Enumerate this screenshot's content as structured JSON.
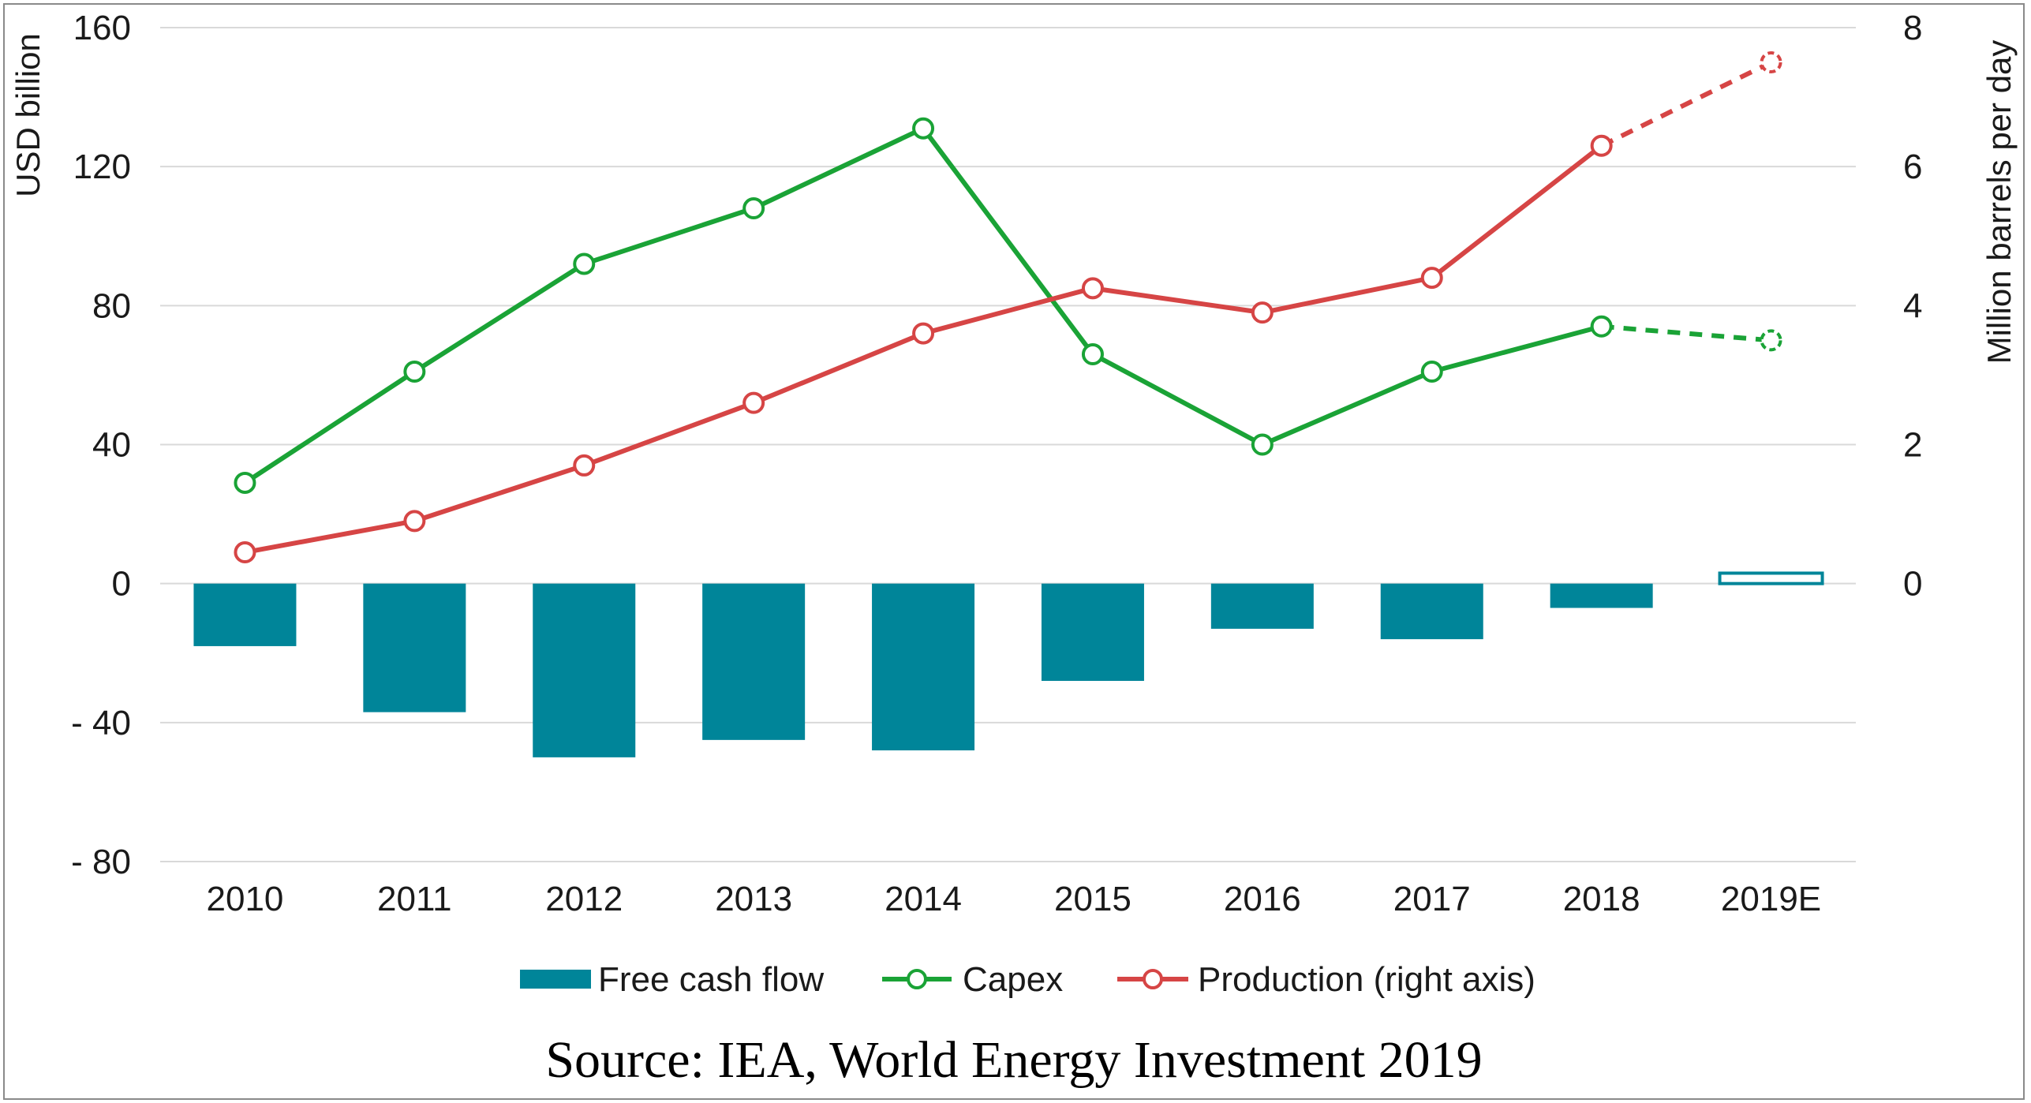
{
  "chart_data": {
    "type": "bar+line",
    "categories": [
      "2010",
      "2011",
      "2012",
      "2013",
      "2014",
      "2015",
      "2016",
      "2017",
      "2018",
      "2019E"
    ],
    "ylabel": "USD billion",
    "y2label": "Million barrels per day",
    "ylim": [
      -80,
      160
    ],
    "y2lim": [
      0,
      8
    ],
    "yticks": [
      "160",
      "120",
      "80",
      "40",
      "0",
      "- 40",
      "- 80"
    ],
    "yticks_values": [
      160,
      120,
      80,
      40,
      0,
      -40,
      -80
    ],
    "y2ticks": [
      "8",
      "6",
      "4",
      "2",
      "0"
    ],
    "y2ticks_values": [
      8,
      6,
      4,
      2,
      0
    ],
    "grid": "horizontal",
    "legend_position": "bottom",
    "series": [
      {
        "name": "Free cash flow",
        "type": "bar",
        "axis": "left",
        "color": "#008599",
        "values": [
          -18,
          -37,
          -50,
          -45,
          -48,
          -28,
          -13,
          -16,
          -7,
          3
        ],
        "estimate_index": 9
      },
      {
        "name": "Capex",
        "type": "line",
        "axis": "left",
        "color": "#1aa336",
        "values": [
          29,
          61,
          92,
          108,
          131,
          66,
          40,
          61,
          74,
          70
        ],
        "dashed_from_index": 8
      },
      {
        "name": "Production (right axis)",
        "type": "line",
        "axis": "right",
        "color": "#d64545",
        "values": [
          0.45,
          0.9,
          1.7,
          2.6,
          3.6,
          4.25,
          3.9,
          4.4,
          6.3,
          7.5
        ],
        "dashed_from_index": 8
      }
    ]
  },
  "source": "Source: IEA, World Energy Investment 2019"
}
